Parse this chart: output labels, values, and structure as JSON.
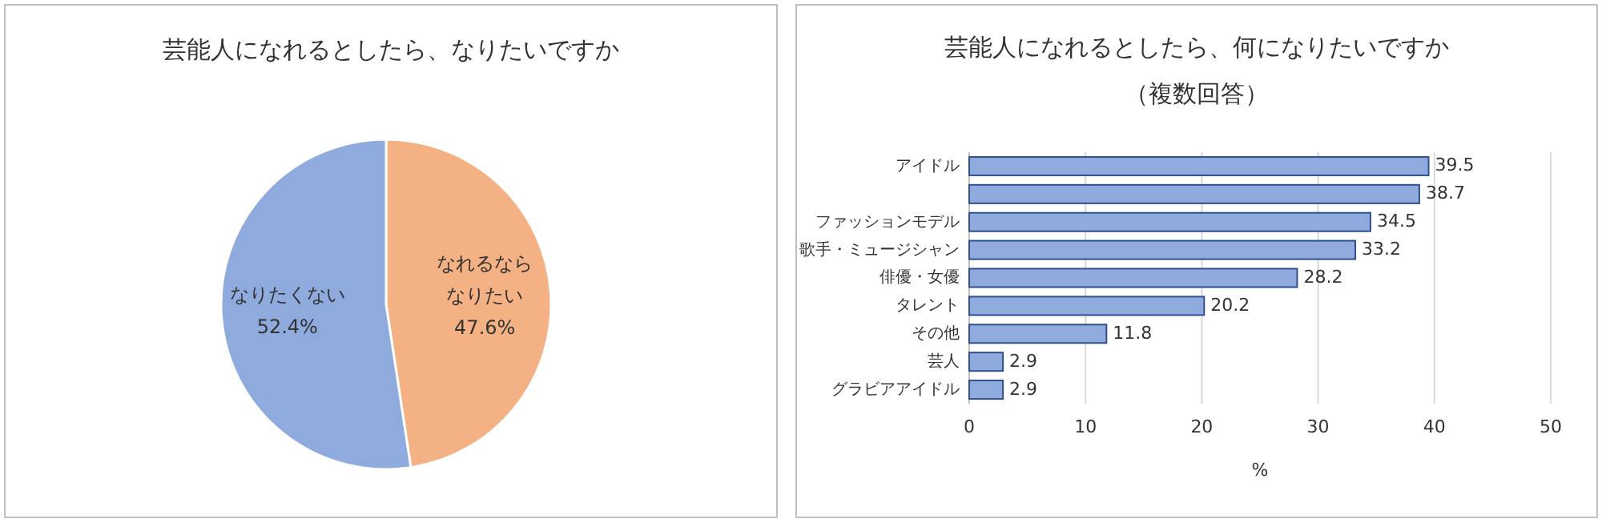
{
  "chart_data": [
    {
      "type": "pie",
      "title": "芸能人になれるとしたら、なりたいですか",
      "categories": [
        "なれるならなりたい",
        "なりたくない"
      ],
      "values": [
        47.6,
        52.4
      ],
      "value_labels": [
        "47.6%",
        "52.4%"
      ],
      "colors": [
        "#f4b183",
        "#8faadc"
      ],
      "data_labels": true
    },
    {
      "type": "bar",
      "orientation": "horizontal",
      "title": "芸能人になれるとしたら、何になりたいですか（複数回答）",
      "categories": [
        "アイドル",
        null,
        "ファッションモデル",
        "歌手・ミュージシャン",
        "俳優・女優",
        "タレント",
        "その他",
        "芸人",
        "グラビアアイドル"
      ],
      "values": [
        39.5,
        38.7,
        34.5,
        33.2,
        28.2,
        20.2,
        11.8,
        2.9,
        2.9
      ],
      "color": "#8faadc",
      "xlim": [
        0,
        50
      ],
      "xticks": [
        0,
        10,
        20,
        30,
        40,
        50
      ],
      "xlabel": "%",
      "grid": "x",
      "data_labels": true
    }
  ]
}
